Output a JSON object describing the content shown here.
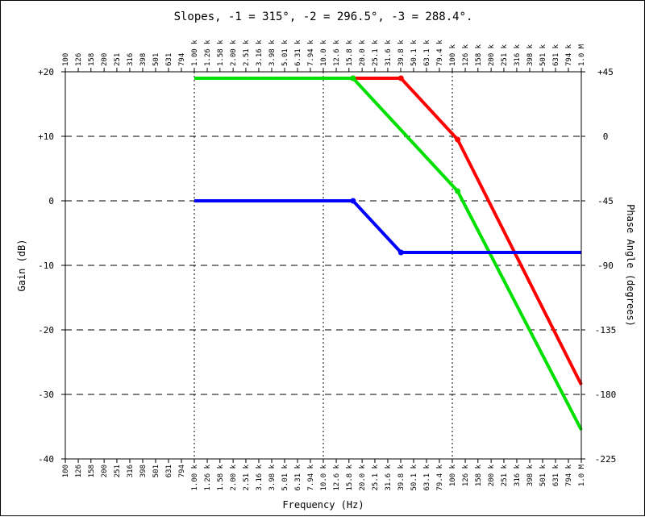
{
  "chart_data": {
    "type": "line",
    "title": "Slopes, -1 = 315°, -2 = 296.5°, -3 = 288.4°.",
    "xlabel": "Frequency (Hz)",
    "ylabel": "Gain (dB)",
    "y2label": "Phase Angle (degrees)",
    "x_scale": "log",
    "xlim": [
      100,
      1000000
    ],
    "ylim": [
      -40,
      20
    ],
    "y2lim": [
      -225,
      45
    ],
    "grid": true,
    "x_ticks": [
      "100",
      "126",
      "158",
      "200",
      "251",
      "316",
      "398",
      "501",
      "631",
      "794",
      "1.00 k",
      "1.26 k",
      "1.58 k",
      "2.00 k",
      "2.51 k",
      "3.16 k",
      "3.98 k",
      "5.01 k",
      "6.31 k",
      "7.94 k",
      "10.0 k",
      "12.6 k",
      "15.8 k",
      "20.0 k",
      "25.1 k",
      "31.6 k",
      "39.8 k",
      "50.1 k",
      "63.1 k",
      "79.4 k",
      "100 k",
      "126 k",
      "158 k",
      "200 k",
      "251 k",
      "316 k",
      "398 k",
      "501 k",
      "631 k",
      "794 k",
      "1.0 M"
    ],
    "y_ticks": [
      "+20",
      "+10",
      "0",
      "-10",
      "-20",
      "-30",
      "-40"
    ],
    "y2_ticks": [
      "+45",
      "0",
      "-45",
      "-90",
      "-135",
      "-180",
      "-225"
    ],
    "series": [
      {
        "color": "#ff0000",
        "x": [
          1000,
          17000,
          40000,
          110000,
          1000000
        ],
        "y": [
          19,
          19,
          19,
          9.5,
          -28.5
        ]
      },
      {
        "color": "#00e000",
        "x": [
          1000,
          17000,
          110000,
          1000000
        ],
        "y": [
          19,
          19,
          1.5,
          -35.5
        ]
      },
      {
        "color": "#0000ff",
        "x": [
          1000,
          17000,
          40000,
          1000000
        ],
        "y": [
          0,
          0,
          -8,
          -8
        ]
      }
    ]
  }
}
